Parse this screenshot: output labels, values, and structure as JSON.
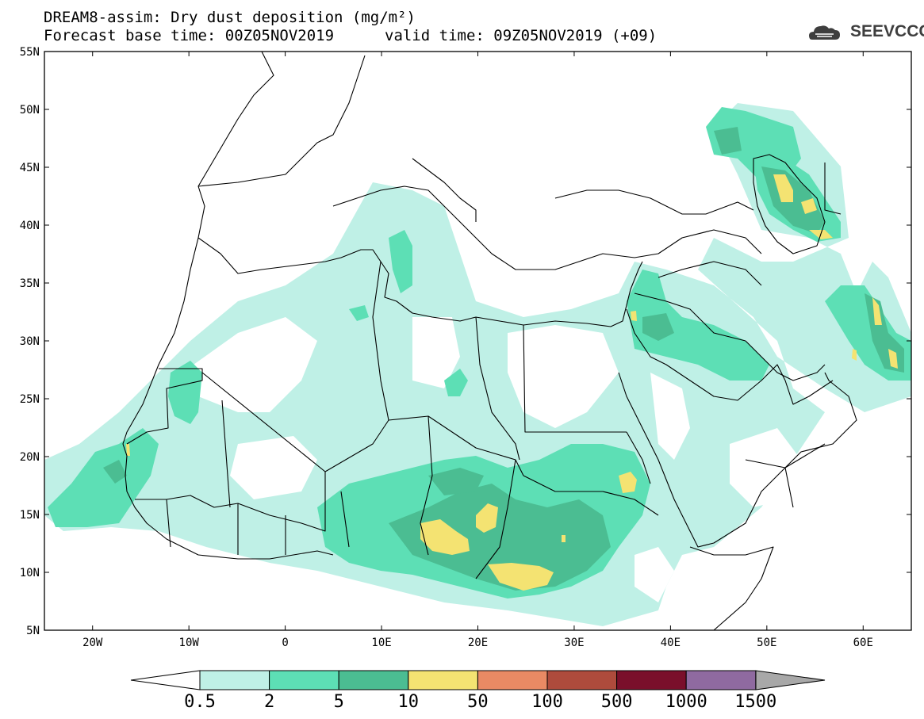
{
  "header": {
    "title_line1": "DREAM8-assim: Dry dust deposition (mg/m²)",
    "title_line2": "Forecast base time: 00Z05NOV2019",
    "title_line2b": "valid time: 09Z05NOV2019 (+09)"
  },
  "logo": {
    "text": "SEEVCCC",
    "icon": "cloud-logo-icon"
  },
  "map": {
    "lon_range": [
      -25,
      65
    ],
    "lat_range": [
      5,
      55
    ],
    "lat_ticks": [
      "55N",
      "50N",
      "45N",
      "40N",
      "35N",
      "30N",
      "25N",
      "20N",
      "15N",
      "10N",
      "5N"
    ],
    "lon_ticks": [
      "20W",
      "10W",
      "0",
      "10E",
      "20E",
      "30E",
      "40E",
      "50E",
      "60E"
    ]
  },
  "colorbar": {
    "labels": [
      "0.5",
      "2",
      "5",
      "10",
      "50",
      "100",
      "500",
      "1000",
      "1500"
    ],
    "colors": [
      "#bff0e6",
      "#5ddfb5",
      "#4bbd92",
      "#f4e372",
      "#e98a64",
      "#ae4b3c",
      "#7a0f2b",
      "#8f6aa0",
      "#a8a8a8"
    ]
  }
}
